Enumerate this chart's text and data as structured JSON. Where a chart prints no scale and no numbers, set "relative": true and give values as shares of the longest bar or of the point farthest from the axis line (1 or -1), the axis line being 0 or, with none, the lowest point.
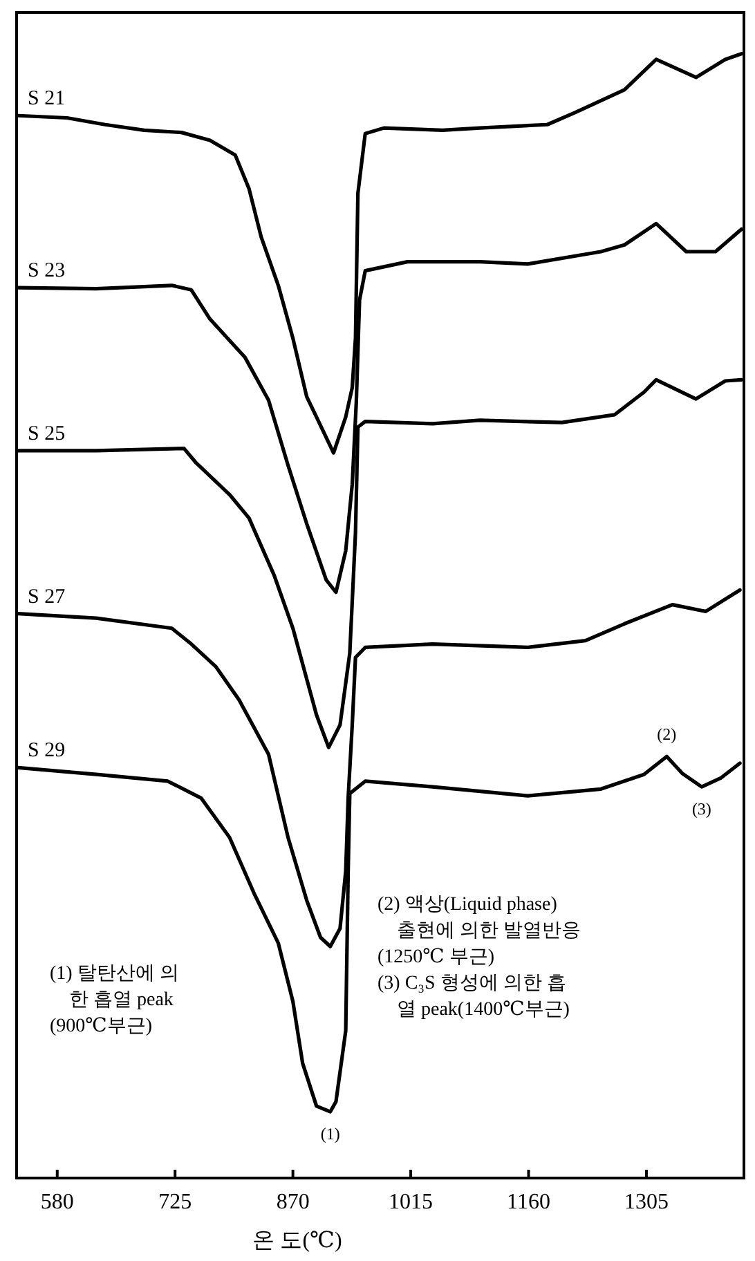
{
  "chart_data": {
    "type": "line",
    "relative": true,
    "xlabel": "온  도(℃)",
    "xlim": [
      530,
      1425
    ],
    "xticks": [
      580,
      725,
      870,
      1015,
      1160,
      1305
    ],
    "grid": false,
    "marker": "none",
    "line_style": "solid",
    "series": [
      {
        "name": "S 21",
        "color": "#000000",
        "x": [
          532,
          592,
          639,
          687,
          733,
          768,
          799,
          816,
          831,
          852,
          870,
          887,
          899,
          920,
          935,
          943,
          947,
          950,
          959,
          982,
          1054,
          1100,
          1183,
          1218,
          1278,
          1317,
          1366,
          1402,
          1422
        ],
        "values": [
          0.945,
          0.943,
          0.937,
          0.932,
          0.93,
          0.923,
          0.91,
          0.88,
          0.837,
          0.794,
          0.747,
          0.695,
          0.677,
          0.645,
          0.677,
          0.703,
          0.747,
          0.876,
          0.929,
          0.934,
          0.932,
          0.934,
          0.937,
          0.948,
          0.968,
          0.995,
          0.979,
          0.995,
          1.0
        ]
      },
      {
        "name": "S 23",
        "color": "#000000",
        "x": [
          532,
          628,
          721,
          745,
          768,
          811,
          840,
          864,
          887,
          911,
          923,
          935,
          943,
          948,
          952,
          959,
          1011,
          1100,
          1159,
          1249,
          1278,
          1317,
          1354,
          1390,
          1422
        ],
        "values": [
          0.792,
          0.791,
          0.794,
          0.79,
          0.764,
          0.73,
          0.692,
          0.634,
          0.582,
          0.532,
          0.521,
          0.558,
          0.617,
          0.69,
          0.781,
          0.807,
          0.815,
          0.815,
          0.813,
          0.824,
          0.83,
          0.849,
          0.824,
          0.824,
          0.844
        ]
      },
      {
        "name": "S 25",
        "color": "#000000",
        "x": [
          532,
          628,
          736,
          751,
          792,
          816,
          847,
          870,
          899,
          914,
          928,
          940,
          947,
          950,
          959,
          1042,
          1100,
          1201,
          1266,
          1302,
          1317,
          1366,
          1402,
          1422
        ],
        "values": [
          0.647,
          0.647,
          0.649,
          0.636,
          0.608,
          0.587,
          0.536,
          0.489,
          0.412,
          0.383,
          0.403,
          0.467,
          0.574,
          0.668,
          0.673,
          0.671,
          0.674,
          0.672,
          0.679,
          0.699,
          0.71,
          0.693,
          0.709,
          0.71
        ]
      },
      {
        "name": "S 27",
        "color": "#000000",
        "x": [
          532,
          628,
          721,
          745,
          775,
          804,
          840,
          864,
          887,
          904,
          916,
          928,
          935,
          938,
          943,
          947,
          959,
          1042,
          1159,
          1230,
          1278,
          1337,
          1378,
          1420
        ],
        "values": [
          0.502,
          0.498,
          0.489,
          0.475,
          0.455,
          0.425,
          0.377,
          0.303,
          0.247,
          0.214,
          0.206,
          0.222,
          0.273,
          0.338,
          0.403,
          0.463,
          0.472,
          0.475,
          0.472,
          0.478,
          0.493,
          0.51,
          0.504,
          0.523
        ]
      },
      {
        "name": "S 29",
        "color": "#000000",
        "x": [
          532,
          628,
          716,
          757,
          792,
          823,
          852,
          870,
          882,
          899,
          916,
          923,
          935,
          938,
          940,
          959,
          1042,
          1159,
          1249,
          1302,
          1330,
          1349,
          1373,
          1397,
          1420
        ],
        "values": [
          0.365,
          0.359,
          0.353,
          0.338,
          0.303,
          0.252,
          0.209,
          0.157,
          0.102,
          0.064,
          0.059,
          0.068,
          0.131,
          0.273,
          0.342,
          0.353,
          0.348,
          0.34,
          0.346,
          0.359,
          0.375,
          0.36,
          0.348,
          0.356,
          0.369
        ]
      }
    ],
    "annotations": [
      {
        "text": "(1)",
        "x": 916,
        "y": 0.059
      },
      {
        "text": "(2)",
        "x": 1330,
        "y": 0.375
      },
      {
        "text": "(3)",
        "x": 1373,
        "y": 0.348
      },
      "(1) 탈탄산에 의\n한 흡열 peak\n(900℃부근)",
      "(2) 액상(Liquid phase)\n출현에 의한 발열반응\n(1250℃ 부근)\n(3) C₃S 형성에 의한 흡\n열 peak(1400℃부근)"
    ]
  }
}
